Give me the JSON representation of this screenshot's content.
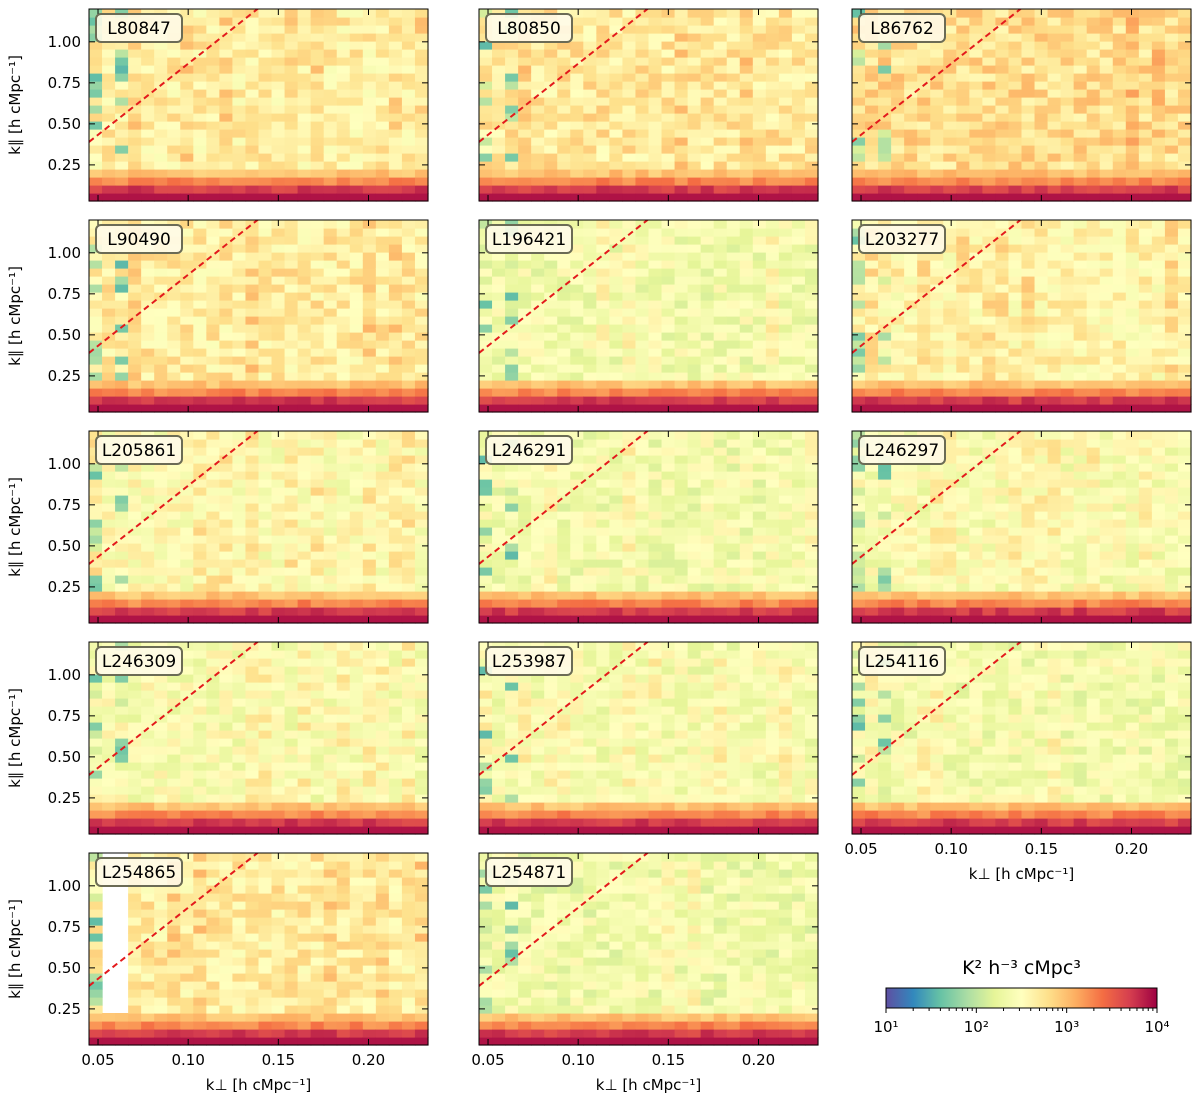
{
  "chart_data": {
    "type": "heatmap",
    "grid": {
      "rows": 5,
      "cols": 3
    },
    "shared_x_axis": {
      "label": "k⊥ [h cMpc⁻¹]",
      "range": [
        0.045,
        0.233
      ],
      "ticks": [
        "0.05",
        "0.10",
        "0.15",
        "0.20"
      ],
      "tick_values": [
        0.05,
        0.1,
        0.15,
        0.2
      ]
    },
    "shared_y_axis": {
      "label": "k∥ [h cMpc⁻¹]",
      "range": [
        0.03,
        1.2
      ],
      "ticks": [
        "0.25",
        "0.50",
        "0.75",
        "1.00"
      ],
      "tick_values": [
        0.25,
        0.5,
        0.75,
        1.0
      ]
    },
    "wedge_line": {
      "description": "red dashed horizon line",
      "x": [
        0.045,
        0.233
      ],
      "y": [
        0.39,
        2.02
      ],
      "color": "#e31a1c"
    },
    "colorbar": {
      "label": "K² h⁻³ cMpc³",
      "scale": "log",
      "range": [
        10,
        10000
      ],
      "tick_labels": [
        "10¹",
        "10²",
        "10³",
        "10⁴"
      ],
      "tick_values": [
        10,
        100,
        1000,
        10000
      ],
      "colormap": "Spectral_r"
    },
    "panels": [
      {
        "label": "L80847",
        "row": 0,
        "col": 0,
        "level": 0.55,
        "seed": 11
      },
      {
        "label": "L80850",
        "row": 0,
        "col": 1,
        "level": 0.57,
        "seed": 23
      },
      {
        "label": "L86762",
        "row": 0,
        "col": 2,
        "level": 0.6,
        "seed": 37
      },
      {
        "label": "L90490",
        "row": 1,
        "col": 0,
        "level": 0.56,
        "seed": 41
      },
      {
        "label": "L196421",
        "row": 1,
        "col": 1,
        "level": 0.46,
        "seed": 53
      },
      {
        "label": "L203277",
        "row": 1,
        "col": 2,
        "level": 0.53,
        "seed": 67
      },
      {
        "label": "L205861",
        "row": 2,
        "col": 0,
        "level": 0.5,
        "seed": 71
      },
      {
        "label": "L246291",
        "row": 2,
        "col": 1,
        "level": 0.46,
        "seed": 83
      },
      {
        "label": "L246297",
        "row": 2,
        "col": 2,
        "level": 0.48,
        "seed": 97
      },
      {
        "label": "L246309",
        "row": 3,
        "col": 0,
        "level": 0.48,
        "seed": 101
      },
      {
        "label": "L253987",
        "row": 3,
        "col": 1,
        "level": 0.47,
        "seed": 113
      },
      {
        "label": "L254116",
        "row": 3,
        "col": 2,
        "level": 0.46,
        "seed": 127
      },
      {
        "label": "L254865",
        "row": 4,
        "col": 0,
        "level": 0.56,
        "seed": 131
      },
      {
        "label": "L254871",
        "row": 4,
        "col": 1,
        "level": 0.45,
        "seed": 139
      }
    ]
  }
}
